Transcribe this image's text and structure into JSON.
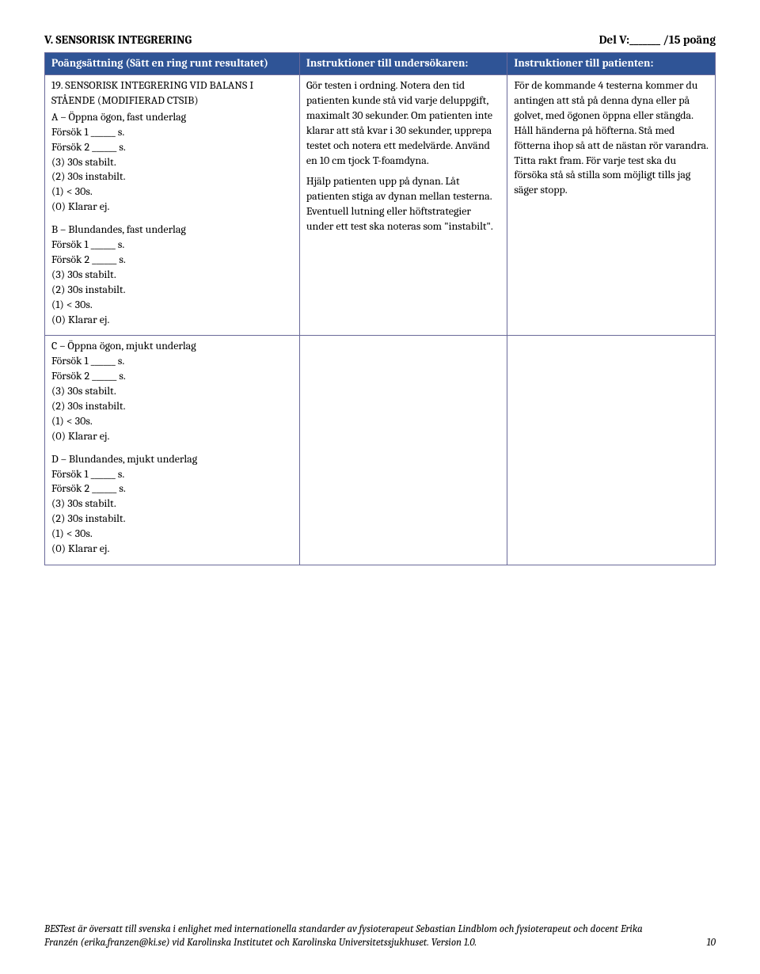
{
  "section": {
    "title": "V. SENSORISK INTEGRERING",
    "score_label": "Del V:_______ /15 poäng"
  },
  "headers": {
    "col1": "Poängsättning (Sätt en ring runt resultatet)",
    "col2": "Instruktioner till undersökaren:",
    "col3": "Instruktioner till patienten:"
  },
  "item19": {
    "title": "19. SENSORISK INTEGRERING VID BALANS I STÅENDE (MODIFIERAD CTSIB)",
    "a_label": "A – Öppna ögon, fast underlag",
    "b_label": "B – Blundandes, fast underlag",
    "c_label": "C – Öppna ögon, mjukt underlag",
    "d_label": "D – Blundandes, mjukt underlag",
    "trial1": "Försök 1 ______ s.",
    "trial2": "Försök 2 ______ s.",
    "s3": "(3) 30s stabilt.",
    "s2": "(2) 30s instabilt.",
    "s1": "(1) < 30s.",
    "s0": "(0) Klarar ej."
  },
  "examiner": {
    "p1": "Gör testen i ordning. Notera den tid patienten kunde stå vid varje deluppgift, maximalt 30 sekunder. Om patienten inte klarar att stå kvar i 30 sekunder, upprepa testet och notera ett medelvärde. Använd en 10 cm tjock T-foamdyna.",
    "p2": "Hjälp patienten upp på dynan. Låt patienten stiga av dynan mellan testerna. Eventuell lutning eller höftstrategier under ett test ska noteras som \"instabilt\"."
  },
  "patient": {
    "p1": "För de kommande 4 testerna kommer du antingen att stå på denna dyna eller på golvet, med ögonen öppna eller stängda. Håll händerna på höfterna. Stå med fötterna ihop så att de nästan rör varandra. Titta rakt fram. För varje test ska du försöka stå så stilla som möjligt tills jag säger stopp."
  },
  "footer": {
    "text": "BESTest är översatt till svenska i enlighet med internationella standarder av fysioterapeut Sebastian Lindblom och fysioterapeut och docent Erika Franzén (erika.franzen@ki.se) vid Karolinska Institutet och Karolinska Universitetssjukhuset. Version 1.0.",
    "page": "10"
  }
}
